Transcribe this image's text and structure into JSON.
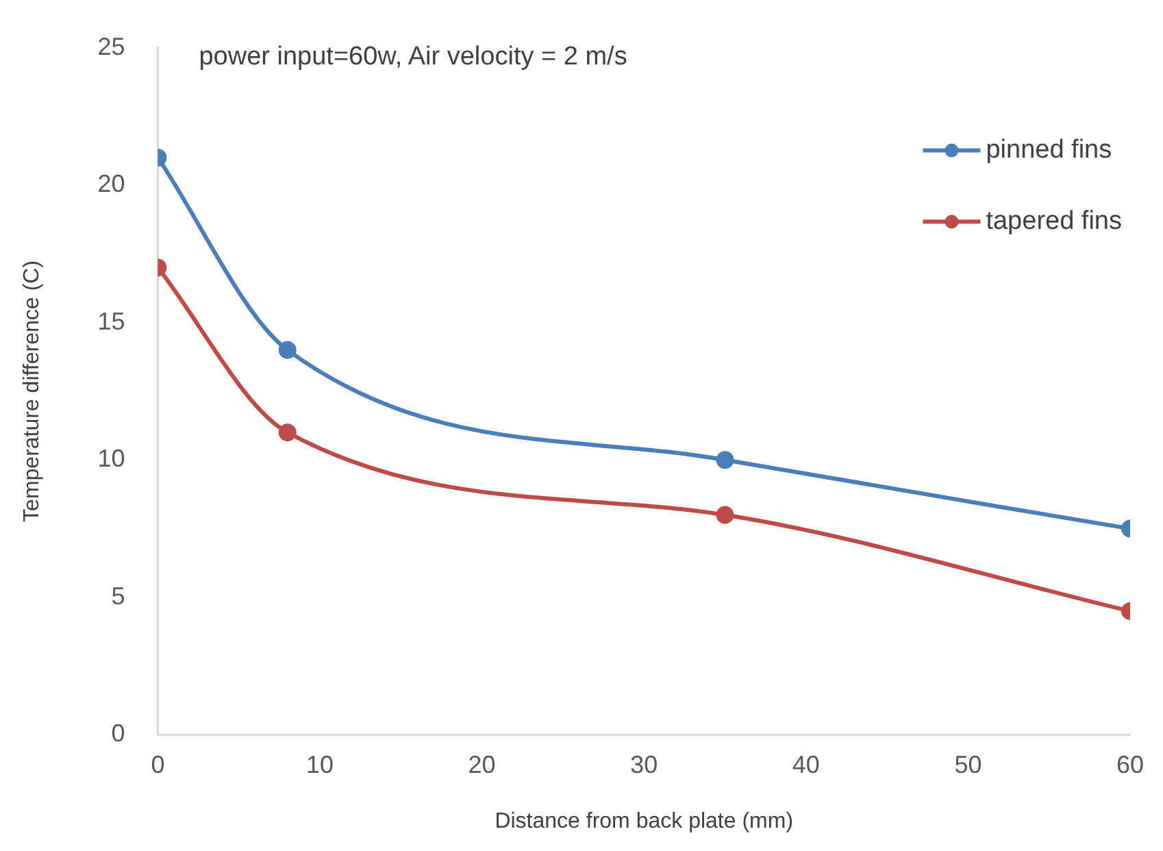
{
  "chart_data": {
    "type": "line",
    "annotations": [
      "power input=60w, Air velocity = 2 m/s"
    ],
    "xlabel": "Distance from back plate (mm)",
    "ylabel": "Temperature difference (C)",
    "x": [
      0,
      8,
      35,
      60
    ],
    "series": [
      {
        "name": "pinned fins",
        "color": "#4a7ebb",
        "values": [
          21,
          14,
          10,
          7.5
        ]
      },
      {
        "name": "tapered fins",
        "color": "#be4b48",
        "values": [
          17,
          11,
          8,
          4.5
        ]
      }
    ],
    "xlim": [
      0,
      60
    ],
    "xticks": [
      0,
      10,
      20,
      30,
      40,
      50,
      60
    ],
    "ylim": [
      0,
      25
    ],
    "yticks": [
      0,
      5,
      10,
      15,
      20,
      25
    ],
    "grid": false,
    "legend": "top right",
    "marker": "circle"
  }
}
